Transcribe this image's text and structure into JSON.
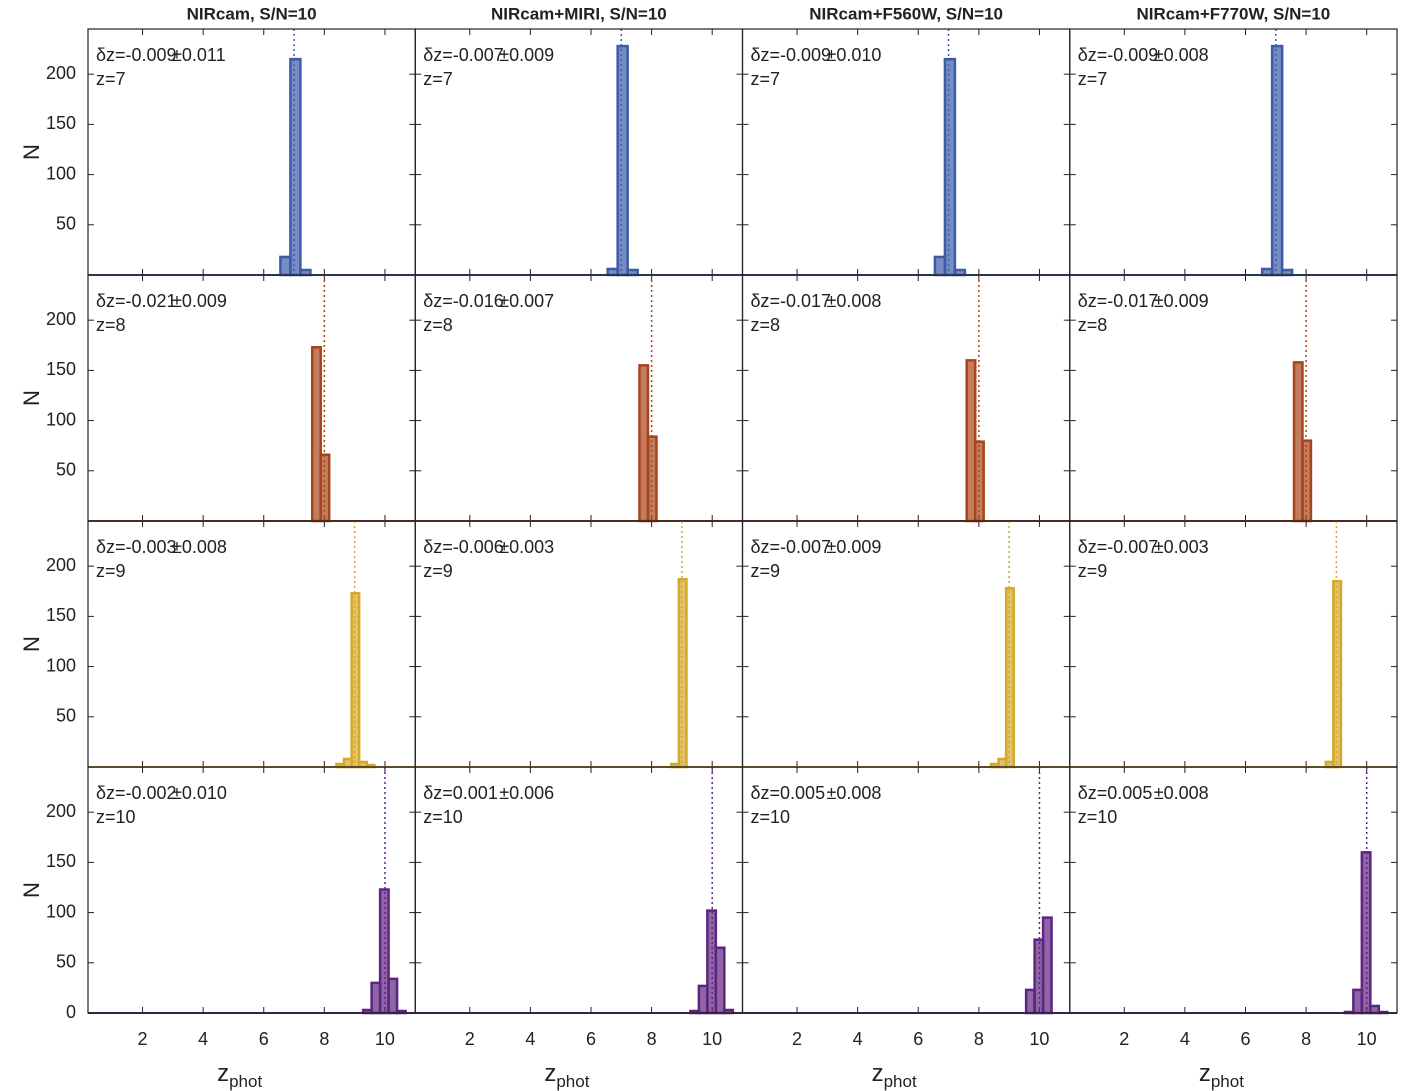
{
  "chart_data": [
    {
      "type": "histogram",
      "title": "NIRcam, S/N=10",
      "ylabel": "N",
      "dz": "δz=-0.009",
      "err": "±0.011",
      "ref_line": {
        "value": 7,
        "label": "z=7"
      },
      "color": "#3c5ba8",
      "bins": [
        6.55,
        6.88,
        7.21,
        7.54
      ],
      "values": [
        18,
        215,
        5
      ],
      "xlim": [
        0.2,
        11
      ],
      "ylim": [
        0,
        245
      ],
      "xticks": [
        2,
        4,
        6,
        8,
        10
      ],
      "yticks": [
        50,
        100,
        150,
        200
      ]
    },
    {
      "type": "histogram",
      "title": "NIRcam+MIRI, S/N=10",
      "dz": "δz=-0.007",
      "err": "±0.009",
      "ref_line": {
        "value": 7,
        "label": "z=7"
      },
      "color": "#3c5ba8",
      "bins": [
        6.55,
        6.88,
        7.21,
        7.54
      ],
      "values": [
        6,
        228,
        5
      ],
      "xlim": [
        0.2,
        11
      ],
      "ylim": [
        0,
        245
      ],
      "xticks": [
        2,
        4,
        6,
        8,
        10
      ],
      "yticks": [
        50,
        100,
        150,
        200
      ]
    },
    {
      "type": "histogram",
      "title": "NIRcam+F560W, S/N=10",
      "dz": "δz=-0.009",
      "err": "±0.010",
      "ref_line": {
        "value": 7,
        "label": "z=7"
      },
      "color": "#3c5ba8",
      "bins": [
        6.55,
        6.88,
        7.21,
        7.54
      ],
      "values": [
        18,
        215,
        5
      ],
      "xlim": [
        0.2,
        11
      ],
      "ylim": [
        0,
        245
      ],
      "xticks": [
        2,
        4,
        6,
        8,
        10
      ],
      "yticks": [
        50,
        100,
        150,
        200
      ]
    },
    {
      "type": "histogram",
      "title": "NIRcam+F770W, S/N=10",
      "dz": "δz=-0.009",
      "err": "±0.008",
      "ref_line": {
        "value": 7,
        "label": "z=7"
      },
      "color": "#3c5ba8",
      "bins": [
        6.55,
        6.88,
        7.21,
        7.54
      ],
      "values": [
        6,
        228,
        5
      ],
      "xlim": [
        0.2,
        11
      ],
      "ylim": [
        0,
        245
      ],
      "xticks": [
        2,
        4,
        6,
        8,
        10
      ],
      "yticks": [
        50,
        100,
        150,
        200
      ]
    },
    {
      "type": "histogram",
      "ylabel": "N",
      "dz": "δz=-0.021",
      "err": "±0.009",
      "ref_line": {
        "value": 8,
        "label": "z=8"
      },
      "color": "#a8441c",
      "bins": [
        7.6,
        7.88,
        8.16
      ],
      "values": [
        173,
        66
      ],
      "xlim": [
        0.2,
        11
      ],
      "ylim": [
        0,
        245
      ],
      "xticks": [
        2,
        4,
        6,
        8,
        10
      ],
      "yticks": [
        50,
        100,
        150,
        200
      ]
    },
    {
      "type": "histogram",
      "dz": "δz=-0.016",
      "err": "±0.007",
      "ref_line": {
        "value": 8,
        "label": "z=8"
      },
      "color": "#a8441c",
      "bins": [
        7.6,
        7.88,
        8.16
      ],
      "values": [
        155,
        84
      ],
      "xlim": [
        0.2,
        11
      ],
      "ylim": [
        0,
        245
      ],
      "xticks": [
        2,
        4,
        6,
        8,
        10
      ],
      "yticks": [
        50,
        100,
        150,
        200
      ]
    },
    {
      "type": "histogram",
      "dz": "δz=-0.017",
      "err": "±0.008",
      "ref_line": {
        "value": 8,
        "label": "z=8"
      },
      "color": "#a8441c",
      "bins": [
        7.6,
        7.88,
        8.16
      ],
      "values": [
        160,
        79
      ],
      "xlim": [
        0.2,
        11
      ],
      "ylim": [
        0,
        245
      ],
      "xticks": [
        2,
        4,
        6,
        8,
        10
      ],
      "yticks": [
        50,
        100,
        150,
        200
      ]
    },
    {
      "type": "histogram",
      "dz": "δz=-0.017",
      "err": "±0.009",
      "ref_line": {
        "value": 8,
        "label": "z=8"
      },
      "color": "#a8441c",
      "bins": [
        7.6,
        7.88,
        8.16
      ],
      "values": [
        158,
        80
      ],
      "xlim": [
        0.2,
        11
      ],
      "ylim": [
        0,
        245
      ],
      "xticks": [
        2,
        4,
        6,
        8,
        10
      ],
      "yticks": [
        50,
        100,
        150,
        200
      ]
    },
    {
      "type": "histogram",
      "ylabel": "N",
      "dz": "δz=-0.003",
      "err": "±0.008",
      "ref_line": {
        "value": 9,
        "label": "z=9"
      },
      "color": "#d4a82a",
      "bins": [
        8.4,
        8.65,
        8.9,
        9.15,
        9.4,
        9.65
      ],
      "values": [
        3,
        8,
        173,
        5,
        2
      ],
      "xlim": [
        0.2,
        11
      ],
      "ylim": [
        0,
        245
      ],
      "xticks": [
        2,
        4,
        6,
        8,
        10
      ],
      "yticks": [
        50,
        100,
        150,
        200
      ]
    },
    {
      "type": "histogram",
      "dz": "δz=-0.006",
      "err": "±0.003",
      "ref_line": {
        "value": 9,
        "label": "z=9"
      },
      "color": "#d4a82a",
      "bins": [
        8.4,
        8.65,
        8.9,
        9.15,
        9.4,
        9.65
      ],
      "values": [
        0,
        3,
        187,
        0,
        0
      ],
      "xlim": [
        0.2,
        11
      ],
      "ylim": [
        0,
        245
      ],
      "xticks": [
        2,
        4,
        6,
        8,
        10
      ],
      "yticks": [
        50,
        100,
        150,
        200
      ]
    },
    {
      "type": "histogram",
      "dz": "δz=-0.007",
      "err": "±0.009",
      "ref_line": {
        "value": 9,
        "label": "z=9"
      },
      "color": "#d4a82a",
      "bins": [
        8.4,
        8.65,
        8.9,
        9.15,
        9.4,
        9.65
      ],
      "values": [
        3,
        8,
        178,
        0,
        0
      ],
      "xlim": [
        0.2,
        11
      ],
      "ylim": [
        0,
        245
      ],
      "xticks": [
        2,
        4,
        6,
        8,
        10
      ],
      "yticks": [
        50,
        100,
        150,
        200
      ]
    },
    {
      "type": "histogram",
      "dz": "δz=-0.007",
      "err": "±0.003",
      "ref_line": {
        "value": 9,
        "label": "z=9"
      },
      "color": "#d4a82a",
      "bins": [
        8.4,
        8.65,
        8.9,
        9.15,
        9.4,
        9.65
      ],
      "values": [
        0,
        5,
        185,
        0,
        0
      ],
      "xlim": [
        0.2,
        11
      ],
      "ylim": [
        0,
        245
      ],
      "xticks": [
        2,
        4,
        6,
        8,
        10
      ],
      "yticks": [
        50,
        100,
        150,
        200
      ]
    },
    {
      "type": "histogram",
      "ylabel": "N",
      "xlabel": "z",
      "xlabel_subscript": "phot",
      "dz": "δz=-0.002",
      "err": "±0.010",
      "ref_line": {
        "value": 10,
        "label": "z=10"
      },
      "color": "#5e2580",
      "bins": [
        9.28,
        9.56,
        9.84,
        10.12,
        10.4,
        10.68
      ],
      "values": [
        3,
        30,
        123,
        34,
        2
      ],
      "xlim": [
        0.2,
        11
      ],
      "ylim": [
        0,
        245
      ],
      "xticks": [
        2,
        4,
        6,
        8,
        10
      ],
      "yticks": [
        0,
        50,
        100,
        150,
        200
      ]
    },
    {
      "type": "histogram",
      "xlabel": "z",
      "xlabel_subscript": "phot",
      "dz": "δz=0.001",
      "err": "±0.006",
      "ref_line": {
        "value": 10,
        "label": "z=10"
      },
      "color": "#5e2580",
      "bins": [
        9.28,
        9.56,
        9.84,
        10.12,
        10.4,
        10.68
      ],
      "values": [
        2,
        27,
        102,
        65,
        3
      ],
      "xlim": [
        0.2,
        11
      ],
      "ylim": [
        0,
        245
      ],
      "xticks": [
        2,
        4,
        6,
        8,
        10
      ],
      "yticks": [
        0,
        50,
        100,
        150,
        200
      ]
    },
    {
      "type": "histogram",
      "xlabel": "z",
      "xlabel_subscript": "phot",
      "dz": "δz=0.005",
      "err": "±0.008",
      "ref_line": {
        "value": 10,
        "label": "z=10"
      },
      "color": "#5e2580",
      "bins": [
        9.28,
        9.56,
        9.84,
        10.12,
        10.4,
        10.68
      ],
      "values": [
        0,
        23,
        73,
        95,
        0
      ],
      "xlim": [
        0.2,
        11
      ],
      "ylim": [
        0,
        245
      ],
      "xticks": [
        2,
        4,
        6,
        8,
        10
      ],
      "yticks": [
        0,
        50,
        100,
        150,
        200
      ]
    },
    {
      "type": "histogram",
      "xlabel": "z",
      "xlabel_subscript": "phot",
      "dz": "δz=0.005",
      "err": "±0.008",
      "ref_line": {
        "value": 10,
        "label": "z=10"
      },
      "color": "#5e2580",
      "bins": [
        9.28,
        9.56,
        9.84,
        10.12,
        10.4,
        10.68
      ],
      "values": [
        1,
        23,
        160,
        7,
        1
      ],
      "xlim": [
        0.2,
        11
      ],
      "ylim": [
        0,
        245
      ],
      "xticks": [
        2,
        4,
        6,
        8,
        10
      ],
      "yticks": [
        0,
        50,
        100,
        150,
        200
      ]
    }
  ]
}
